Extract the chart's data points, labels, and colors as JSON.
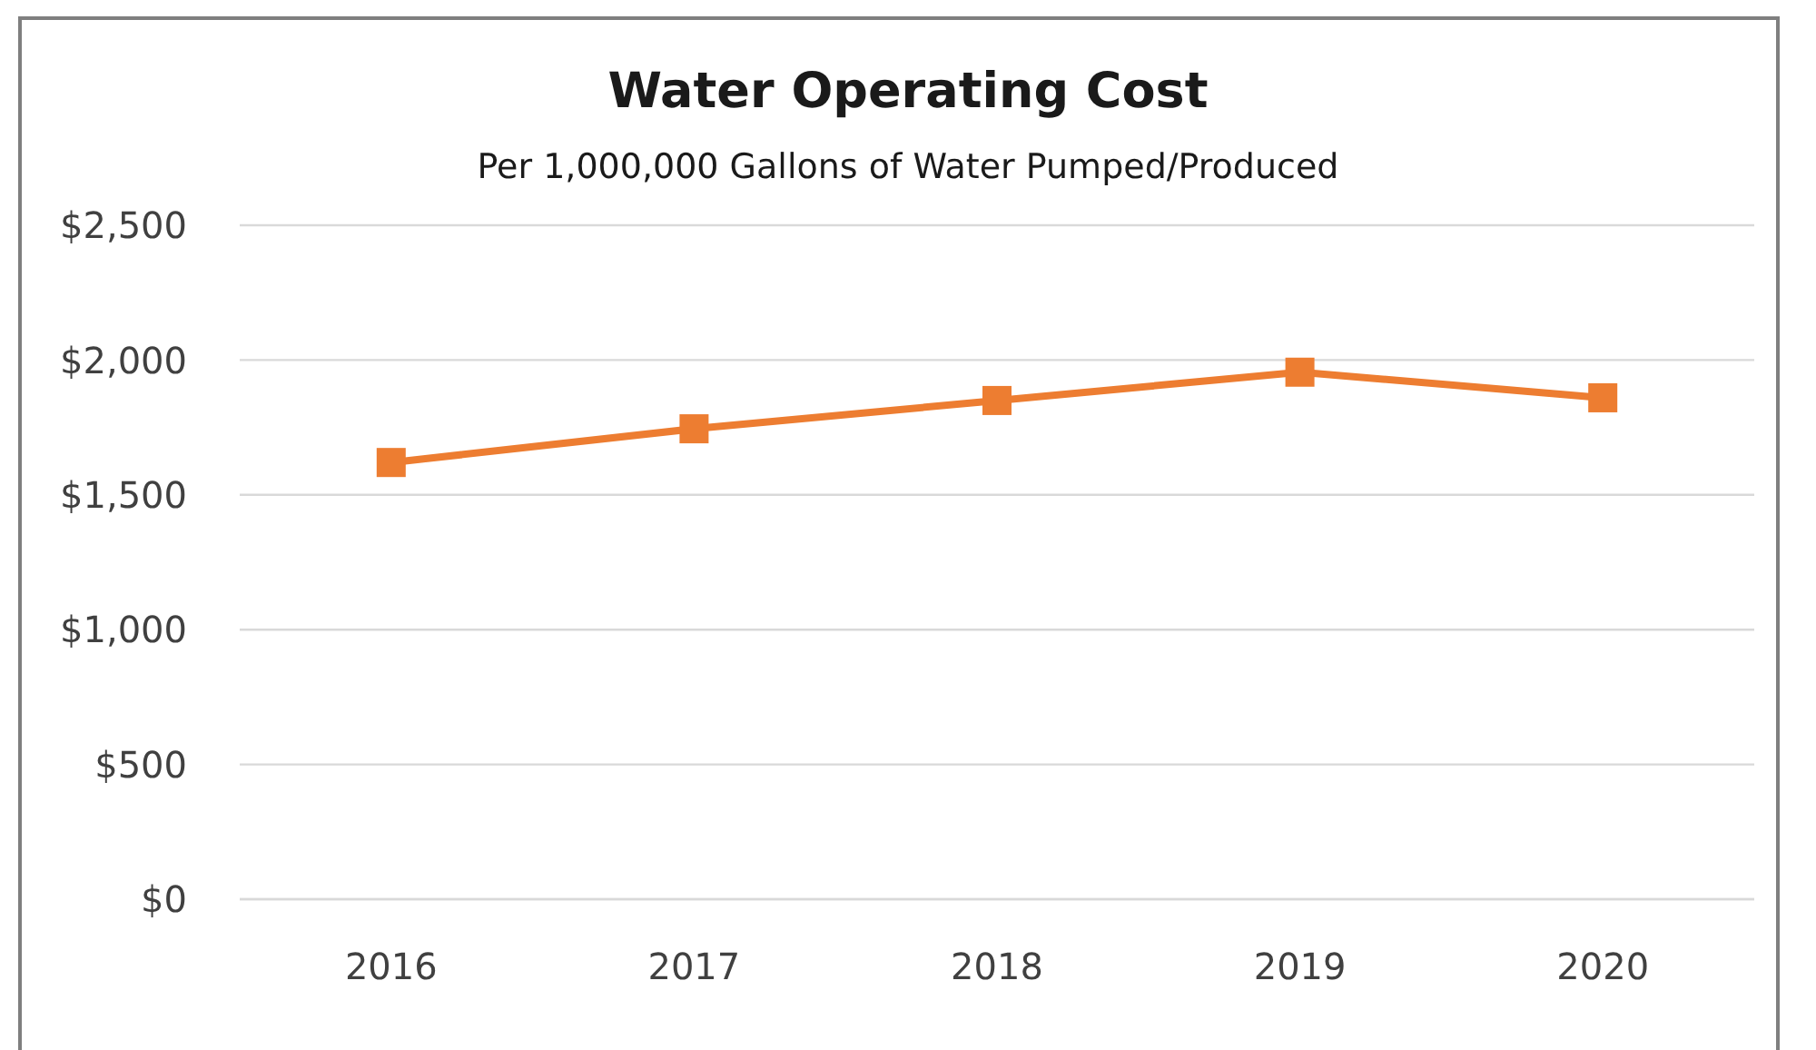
{
  "chart_data": {
    "type": "line",
    "title": "Water Operating Cost",
    "subtitle": "Per 1,000,000 Gallons of Water Pumped/Produced",
    "categories": [
      "2016",
      "2017",
      "2018",
      "2019",
      "2020"
    ],
    "series": [
      {
        "color": "#ed7d31",
        "values": [
          1620,
          1745,
          1850,
          1955,
          1860
        ]
      }
    ],
    "ylim": [
      0,
      2500
    ],
    "yticks": [
      {
        "value": 0,
        "label": "$0"
      },
      {
        "value": 500,
        "label": "$500"
      },
      {
        "value": 1000,
        "label": "$1,000"
      },
      {
        "value": 1500,
        "label": "$1,500"
      },
      {
        "value": 2000,
        "label": "$2,000"
      },
      {
        "value": 2500,
        "label": "$2,500"
      }
    ],
    "grid": "y",
    "marker": "square",
    "line_style": "solid"
  }
}
